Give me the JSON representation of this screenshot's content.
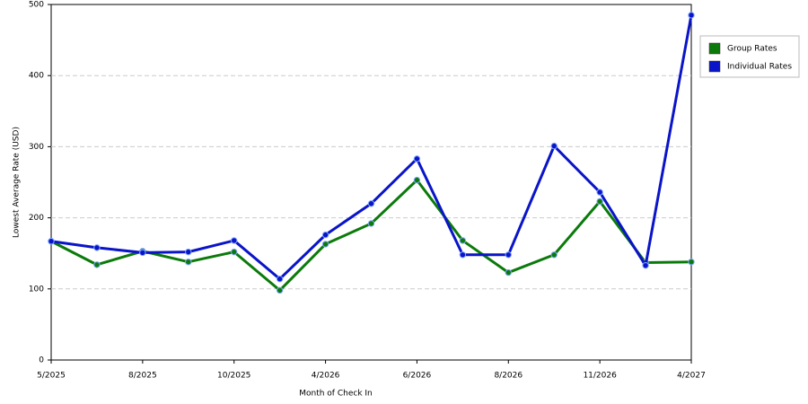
{
  "chart_data": {
    "type": "line",
    "x_label": "Month of Check In",
    "y_label": "Lowest Average Rate (USD)",
    "categories": [
      "5/2025",
      null,
      "8/2025",
      null,
      "10/2025",
      null,
      "4/2026",
      null,
      "6/2026",
      null,
      "8/2026",
      null,
      "11/2026",
      null,
      "4/2027"
    ],
    "series": [
      {
        "name": "Group Rates",
        "color": "#0b7a0b",
        "values": [
          167,
          134,
          153,
          138,
          152,
          98,
          163,
          192,
          253,
          168,
          123,
          148,
          223,
          137,
          138
        ]
      },
      {
        "name": "Individual Rates",
        "color": "#0a14c8",
        "values": [
          167,
          158,
          151,
          152,
          168,
          114,
          176,
          220,
          283,
          148,
          148,
          301,
          236,
          133,
          485
        ]
      }
    ],
    "ylim": [
      0,
      500
    ],
    "yticks": [
      0,
      100,
      200,
      300,
      400,
      500
    ],
    "grid": true,
    "legend": "right"
  }
}
